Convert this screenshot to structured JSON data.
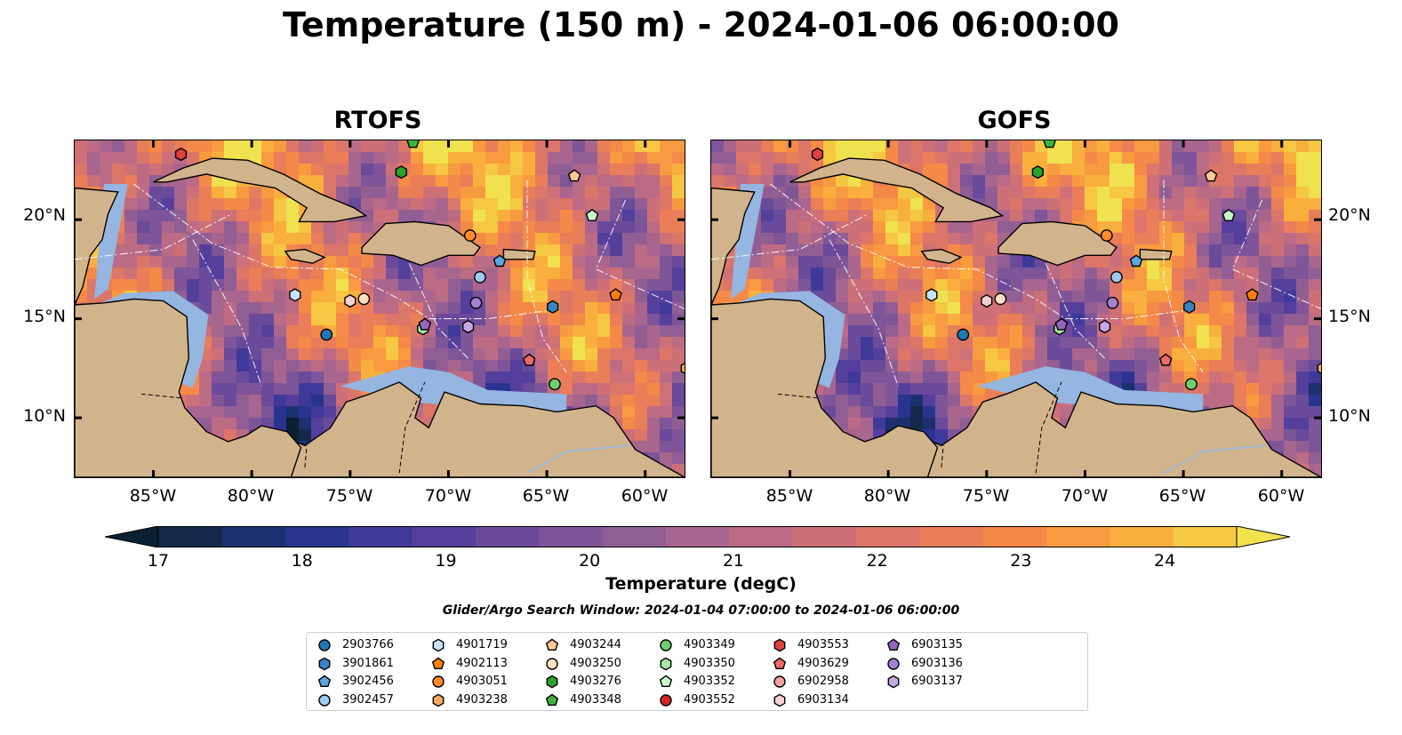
{
  "title": "Temperature (150 m) - 2024-01-06 06:00:00",
  "panels": [
    {
      "title": "RTOFS"
    },
    {
      "title": "GOFS"
    }
  ],
  "axes": {
    "x_ticks": [
      "85°W",
      "80°W",
      "75°W",
      "70°W",
      "65°W",
      "60°W"
    ],
    "y_ticks": [
      "20°N",
      "15°N",
      "10°N"
    ],
    "x_values": [
      -85,
      -80,
      -75,
      -70,
      -65,
      -60
    ],
    "y_values": [
      20,
      15,
      10
    ],
    "lon_range": [
      -89,
      -58
    ],
    "lat_range": [
      7,
      24
    ]
  },
  "colorbar": {
    "label": "Temperature (degC)",
    "ticks": [
      "17",
      "18",
      "19",
      "20",
      "21",
      "22",
      "23",
      "24"
    ],
    "tick_values": [
      17,
      18,
      19,
      20,
      21,
      22,
      23,
      24
    ],
    "range": [
      16.75,
      24.5
    ],
    "extend": "both",
    "colors": [
      "#0b2030",
      "#14294a",
      "#1c3070",
      "#2a3490",
      "#3f3a9a",
      "#553f9c",
      "#6a4a9a",
      "#7d5598",
      "#915e94",
      "#a8658e",
      "#bc6b85",
      "#cd7078",
      "#db7669",
      "#e97e58",
      "#f48948",
      "#f89a3f",
      "#f8af3e",
      "#f5c743",
      "#f0e14f"
    ]
  },
  "search_window": "Glider/Argo Search Window: 2024-01-04 07:00:00 to 2024-01-06 06:00:00",
  "legend": [
    {
      "id": "2903766",
      "marker": "circle",
      "color": "#1f77b4"
    },
    {
      "id": "3901861",
      "marker": "hexagon",
      "color": "#3a82c4"
    },
    {
      "id": "3902456",
      "marker": "pentagon",
      "color": "#5aa7e0"
    },
    {
      "id": "3902457",
      "marker": "circle",
      "color": "#9ec9f0"
    },
    {
      "id": "4901719",
      "marker": "hexagon",
      "color": "#c6e3fa"
    },
    {
      "id": "4902113",
      "marker": "pentagon",
      "color": "#ff7f0e"
    },
    {
      "id": "4903051",
      "marker": "circle",
      "color": "#ff8c2a"
    },
    {
      "id": "4903238",
      "marker": "hexagon",
      "color": "#ffa85c"
    },
    {
      "id": "4903244",
      "marker": "pentagon",
      "color": "#ffc894"
    },
    {
      "id": "4903250",
      "marker": "circle",
      "color": "#ffe0c2"
    },
    {
      "id": "4903276",
      "marker": "hexagon",
      "color": "#2ca02c"
    },
    {
      "id": "4903348",
      "marker": "pentagon",
      "color": "#3cb43c"
    },
    {
      "id": "4903349",
      "marker": "circle",
      "color": "#6fcf6f"
    },
    {
      "id": "4903350",
      "marker": "hexagon",
      "color": "#a3e8a3"
    },
    {
      "id": "4903352",
      "marker": "pentagon",
      "color": "#c8f8c8"
    },
    {
      "id": "4903552",
      "marker": "circle",
      "color": "#d62728"
    },
    {
      "id": "4903553",
      "marker": "hexagon",
      "color": "#e04040"
    },
    {
      "id": "4903629",
      "marker": "pentagon",
      "color": "#ea6a6a"
    },
    {
      "id": "6902958",
      "marker": "circle",
      "color": "#f2a0a0"
    },
    {
      "id": "6903134",
      "marker": "hexagon",
      "color": "#f8d0d0"
    },
    {
      "id": "6903135",
      "marker": "pentagon",
      "color": "#9467bd"
    },
    {
      "id": "6903136",
      "marker": "circle",
      "color": "#a77fd0"
    },
    {
      "id": "6903137",
      "marker": "hexagon",
      "color": "#c6a8e6"
    }
  ],
  "platforms": [
    {
      "id": "2903766",
      "lon": -76.2,
      "lat": 14.2
    },
    {
      "id": "3901861",
      "lon": -64.7,
      "lat": 15.6
    },
    {
      "id": "3902456",
      "lon": -67.4,
      "lat": 17.9
    },
    {
      "id": "3902457",
      "lon": -68.4,
      "lat": 17.1
    },
    {
      "id": "4901719",
      "lon": -77.8,
      "lat": 16.2
    },
    {
      "id": "4902113",
      "lon": -61.5,
      "lat": 16.2
    },
    {
      "id": "4903051",
      "lon": -68.9,
      "lat": 19.2
    },
    {
      "id": "4903238",
      "lon": -57.9,
      "lat": 12.5
    },
    {
      "id": "4903244",
      "lon": -63.6,
      "lat": 22.2
    },
    {
      "id": "4903250",
      "lon": -74.3,
      "lat": 16.0
    },
    {
      "id": "4903276",
      "lon": -72.4,
      "lat": 22.4
    },
    {
      "id": "4903348",
      "lon": -71.8,
      "lat": 23.9
    },
    {
      "id": "4903349",
      "lon": -64.6,
      "lat": 11.7
    },
    {
      "id": "4903350",
      "lon": -71.3,
      "lat": 14.5
    },
    {
      "id": "4903352",
      "lon": -62.7,
      "lat": 20.2
    },
    {
      "id": "4903553",
      "lon": -83.6,
      "lat": 23.3
    },
    {
      "id": "4903629",
      "lon": -65.9,
      "lat": 12.9
    },
    {
      "id": "6903134",
      "lon": -75.0,
      "lat": 15.9
    },
    {
      "id": "6903135",
      "lon": -71.2,
      "lat": 14.7
    },
    {
      "id": "6903136",
      "lon": -68.6,
      "lat": 15.8
    },
    {
      "id": "6903137",
      "lon": -69.0,
      "lat": 14.6
    }
  ]
}
